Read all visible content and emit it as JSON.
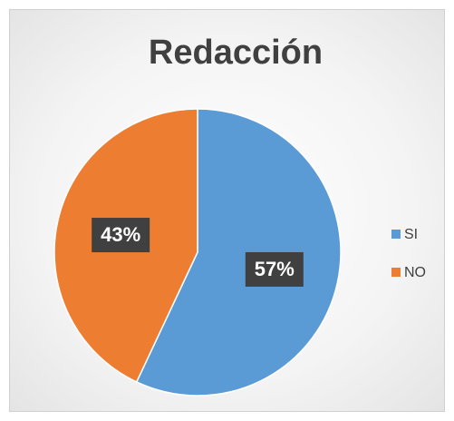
{
  "chart_data": {
    "type": "pie",
    "title": "Redacción",
    "categories": [
      "SI",
      "NO"
    ],
    "values": [
      57,
      43
    ],
    "value_labels": [
      "57%",
      "43%"
    ],
    "colors": [
      "#5b9bd5",
      "#ed7d31"
    ],
    "legend": "right"
  }
}
